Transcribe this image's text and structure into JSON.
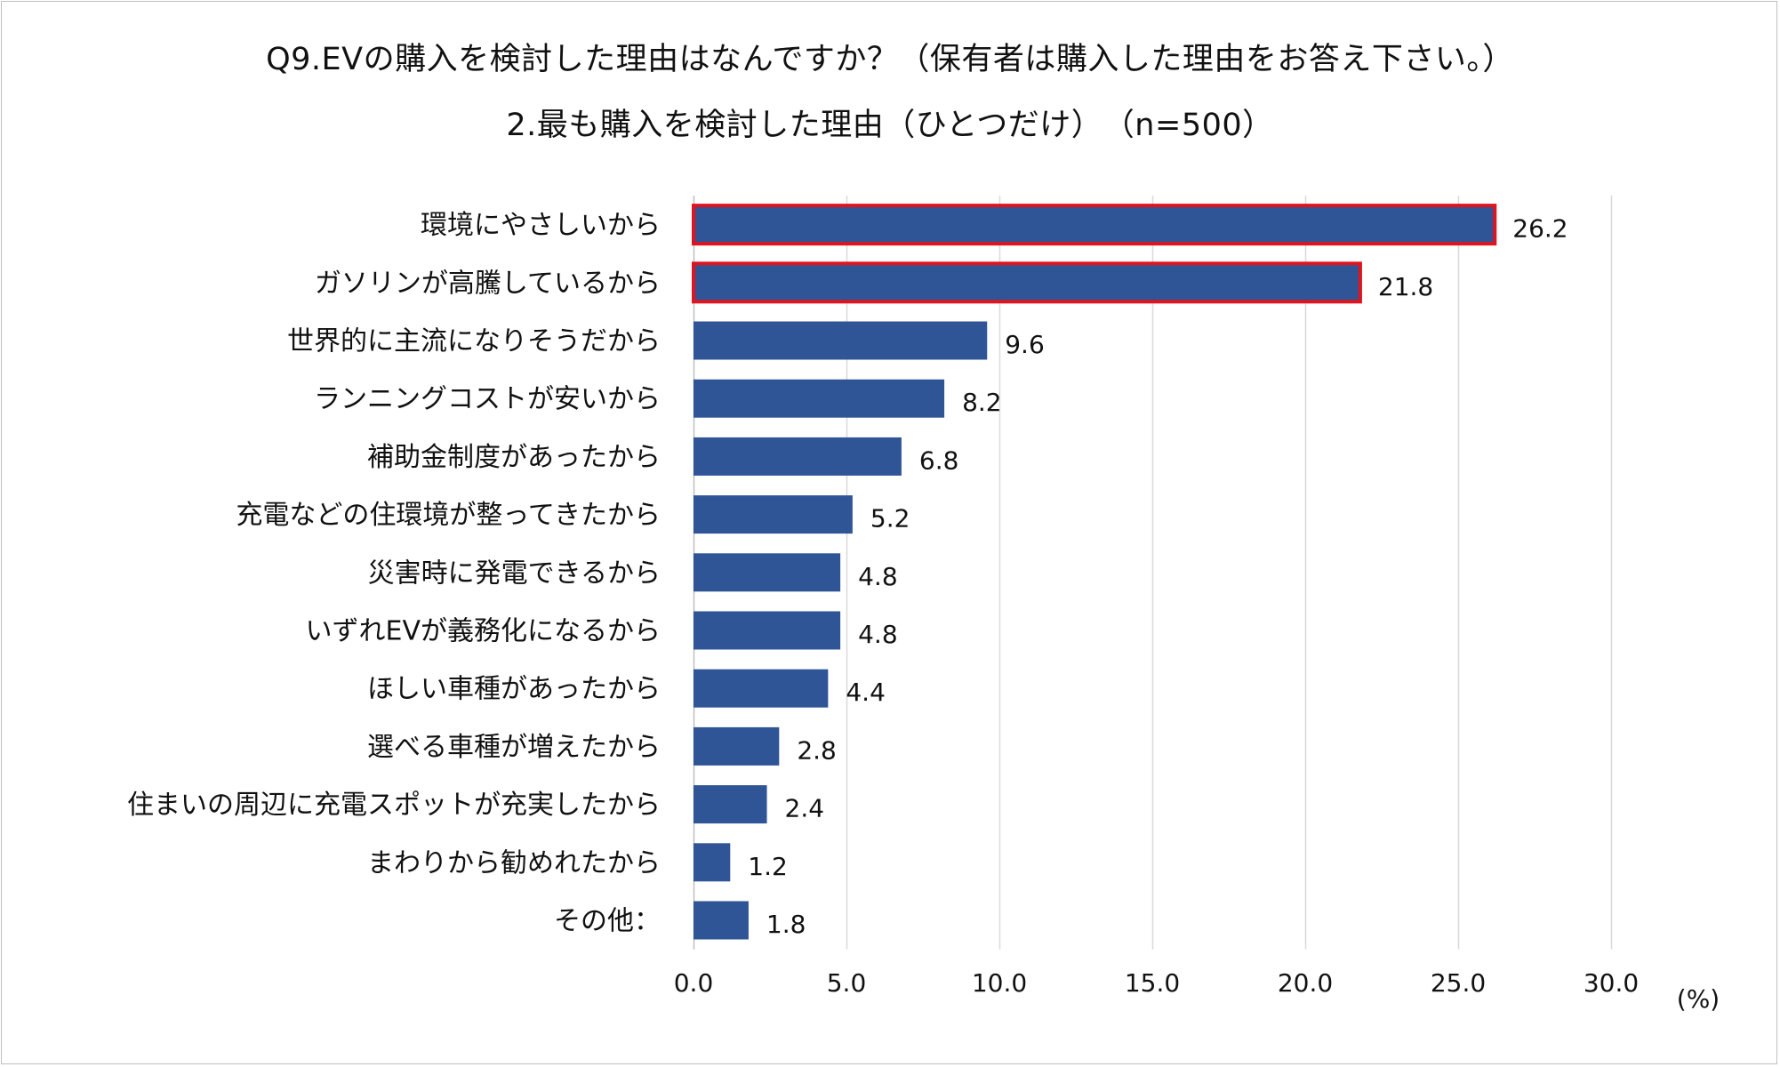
{
  "chart_data": {
    "type": "bar",
    "orientation": "horizontal",
    "title": "Q9.EVの購入を検討した理由はなんですか？（保有者は購入した理由をお答え下さい。）",
    "subtitle": "2.最も購入を検討した理由（ひとつだけ）　（n=500）",
    "categories": [
      "環境にやさしいから",
      "ガソリンが高騰しているから",
      "世界的に主流になりそうだから",
      "ランニングコストが安いから",
      "補助金制度があったから",
      "充電などの住環境が整ってきたから",
      "災害時に発電できるから",
      "いずれEVが義務化になるから",
      "ほしい車種があったから",
      "選べる車種が増えたから",
      "住まいの周辺に充電スポットが充実したから",
      "まわりから勧めれたから",
      "その他："
    ],
    "values": [
      26.2,
      21.8,
      9.6,
      8.2,
      6.8,
      5.2,
      4.8,
      4.8,
      4.4,
      2.8,
      2.4,
      1.2,
      1.8
    ],
    "value_labels": [
      "26.2",
      "21.8",
      "9.6",
      "8.2",
      "6.8",
      "5.2",
      "4.8",
      "4.8",
      "4.4",
      "2.8",
      "2.4",
      "1.2",
      "1.8"
    ],
    "highlighted": [
      0,
      1
    ],
    "xlim": [
      0,
      30
    ],
    "xticks": [
      "0.0",
      "5.0",
      "10.0",
      "15.0",
      "20.0",
      "25.0",
      "30.0"
    ],
    "unit_label": "(%)",
    "grid": "vertical",
    "legend": "none",
    "colors": {
      "bar": "#2f5597",
      "highlight_border": "#e0141e",
      "grid": "#d9d9d9"
    }
  }
}
